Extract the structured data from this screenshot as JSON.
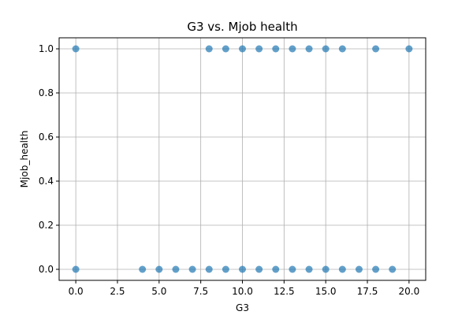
{
  "chart_data": {
    "type": "scatter",
    "title": "G3 vs. Mjob health",
    "xlabel": "G3",
    "ylabel": "Mjob_health",
    "xlim": [
      -1,
      21
    ],
    "ylim": [
      -0.05,
      1.05
    ],
    "xticks": [
      0.0,
      2.5,
      5.0,
      7.5,
      10.0,
      12.5,
      15.0,
      17.5,
      20.0
    ],
    "xtick_labels": [
      "0.0",
      "2.5",
      "5.0",
      "7.5",
      "10.0",
      "12.5",
      "15.0",
      "17.5",
      "20.0"
    ],
    "yticks": [
      0.0,
      0.2,
      0.4,
      0.6,
      0.8,
      1.0
    ],
    "ytick_labels": [
      "0.0",
      "0.2",
      "0.4",
      "0.6",
      "0.8",
      "1.0"
    ],
    "grid": true,
    "point_color": "#1f77b4",
    "point_alpha": 0.7,
    "points": [
      {
        "x": 0,
        "y": 1
      },
      {
        "x": 8,
        "y": 1
      },
      {
        "x": 9,
        "y": 1
      },
      {
        "x": 10,
        "y": 1
      },
      {
        "x": 11,
        "y": 1
      },
      {
        "x": 12,
        "y": 1
      },
      {
        "x": 13,
        "y": 1
      },
      {
        "x": 14,
        "y": 1
      },
      {
        "x": 15,
        "y": 1
      },
      {
        "x": 16,
        "y": 1
      },
      {
        "x": 18,
        "y": 1
      },
      {
        "x": 20,
        "y": 1
      },
      {
        "x": 0,
        "y": 0
      },
      {
        "x": 4,
        "y": 0
      },
      {
        "x": 5,
        "y": 0
      },
      {
        "x": 6,
        "y": 0
      },
      {
        "x": 7,
        "y": 0
      },
      {
        "x": 8,
        "y": 0
      },
      {
        "x": 9,
        "y": 0
      },
      {
        "x": 10,
        "y": 0
      },
      {
        "x": 11,
        "y": 0
      },
      {
        "x": 12,
        "y": 0
      },
      {
        "x": 13,
        "y": 0
      },
      {
        "x": 14,
        "y": 0
      },
      {
        "x": 15,
        "y": 0
      },
      {
        "x": 16,
        "y": 0
      },
      {
        "x": 17,
        "y": 0
      },
      {
        "x": 18,
        "y": 0
      },
      {
        "x": 19,
        "y": 0
      }
    ]
  }
}
